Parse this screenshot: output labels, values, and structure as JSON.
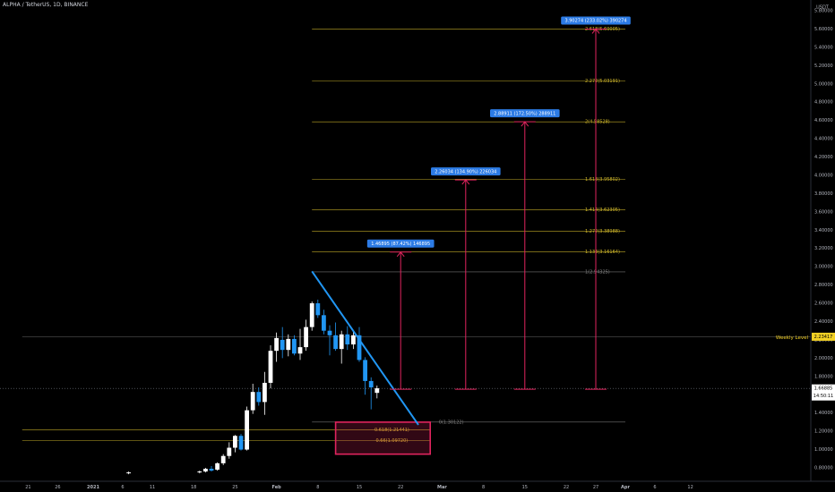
{
  "header": {
    "symbol_line": "ALPHA / TetherUS, 1D, BINANCE"
  },
  "chart_data": {
    "type": "candlestick",
    "quote_currency": "USDT",
    "y_axis": {
      "ylim": [
        0.7,
        5.95
      ],
      "ticks": [
        "5.80000",
        "5.60000",
        "5.40000",
        "5.20000",
        "5.00000",
        "4.80000",
        "4.60000",
        "4.40000",
        "4.20000",
        "4.00000",
        "3.80000",
        "3.60000",
        "3.40000",
        "3.20000",
        "3.00000",
        "2.80000",
        "2.60000",
        "2.40000",
        "2.20000",
        "2.00000",
        "1.80000",
        "1.60000",
        "1.40000",
        "1.20000",
        "1.00000",
        "0.80000"
      ]
    },
    "x_axis": {
      "tick_labels": [
        {
          "label": "21",
          "day": -11
        },
        {
          "label": "26",
          "day": -6
        },
        {
          "label": "2021",
          "day": 0
        },
        {
          "label": "6",
          "day": 5
        },
        {
          "label": "11",
          "day": 10
        },
        {
          "label": "18",
          "day": 17
        },
        {
          "label": "25",
          "day": 24
        },
        {
          "label": "Feb",
          "day": 31
        },
        {
          "label": "8",
          "day": 38
        },
        {
          "label": "15",
          "day": 45
        },
        {
          "label": "22",
          "day": 52
        },
        {
          "label": "Mar",
          "day": 59
        },
        {
          "label": "8",
          "day": 66
        },
        {
          "label": "15",
          "day": 73
        },
        {
          "label": "22",
          "day": 80
        },
        {
          "label": "27",
          "day": 85
        },
        {
          "label": "Apr",
          "day": 90
        },
        {
          "label": "6",
          "day": 95
        },
        {
          "label": "12",
          "day": 101
        }
      ]
    },
    "candles": [
      {
        "day": 6,
        "o": 0.74,
        "h": 0.76,
        "l": 0.73,
        "c": 0.75
      },
      {
        "day": 18,
        "o": 0.75,
        "h": 0.77,
        "l": 0.74,
        "c": 0.76
      },
      {
        "day": 19,
        "o": 0.76,
        "h": 0.8,
        "l": 0.75,
        "c": 0.79
      },
      {
        "day": 20,
        "o": 0.79,
        "h": 0.82,
        "l": 0.76,
        "c": 0.77
      },
      {
        "day": 21,
        "o": 0.78,
        "h": 0.86,
        "l": 0.77,
        "c": 0.85
      },
      {
        "day": 22,
        "o": 0.85,
        "h": 0.95,
        "l": 0.83,
        "c": 0.93
      },
      {
        "day": 23,
        "o": 0.93,
        "h": 1.08,
        "l": 0.9,
        "c": 1.02
      },
      {
        "day": 24,
        "o": 1.02,
        "h": 1.16,
        "l": 0.97,
        "c": 1.15
      },
      {
        "day": 25,
        "o": 1.15,
        "h": 1.17,
        "l": 0.99,
        "c": 1.0
      },
      {
        "day": 26,
        "o": 1.0,
        "h": 1.47,
        "l": 0.99,
        "c": 1.43
      },
      {
        "day": 27,
        "o": 1.43,
        "h": 1.72,
        "l": 1.39,
        "c": 1.63
      },
      {
        "day": 28,
        "o": 1.63,
        "h": 1.68,
        "l": 1.48,
        "c": 1.52
      },
      {
        "day": 29,
        "o": 1.52,
        "h": 1.85,
        "l": 1.38,
        "c": 1.73
      },
      {
        "day": 30,
        "o": 1.73,
        "h": 2.14,
        "l": 1.67,
        "c": 2.08
      },
      {
        "day": 31,
        "o": 2.08,
        "h": 2.28,
        "l": 1.96,
        "c": 2.22
      },
      {
        "day": 32,
        "o": 2.2,
        "h": 2.34,
        "l": 2.0,
        "c": 2.09
      },
      {
        "day": 33,
        "o": 2.09,
        "h": 2.26,
        "l": 2.02,
        "c": 2.21
      },
      {
        "day": 34,
        "o": 2.21,
        "h": 2.25,
        "l": 2.03,
        "c": 2.05
      },
      {
        "day": 35,
        "o": 2.05,
        "h": 2.32,
        "l": 1.98,
        "c": 2.12
      },
      {
        "day": 36,
        "o": 2.12,
        "h": 2.42,
        "l": 2.08,
        "c": 2.34
      },
      {
        "day": 37,
        "o": 2.34,
        "h": 2.62,
        "l": 2.3,
        "c": 2.6
      },
      {
        "day": 38,
        "o": 2.6,
        "h": 2.64,
        "l": 2.44,
        "c": 2.47
      },
      {
        "day": 39,
        "o": 2.47,
        "h": 2.53,
        "l": 2.26,
        "c": 2.3
      },
      {
        "day": 40,
        "o": 2.3,
        "h": 2.36,
        "l": 2.03,
        "c": 2.25
      },
      {
        "day": 41,
        "o": 2.25,
        "h": 2.39,
        "l": 2.08,
        "c": 2.1
      },
      {
        "day": 42,
        "o": 2.1,
        "h": 2.3,
        "l": 1.94,
        "c": 2.26
      },
      {
        "day": 43,
        "o": 2.26,
        "h": 2.35,
        "l": 2.09,
        "c": 2.15
      },
      {
        "day": 44,
        "o": 2.15,
        "h": 2.3,
        "l": 2.1,
        "c": 2.25
      },
      {
        "day": 45,
        "o": 2.25,
        "h": 2.34,
        "l": 1.96,
        "c": 1.98
      },
      {
        "day": 46,
        "o": 1.98,
        "h": 2.01,
        "l": 1.6,
        "c": 1.75
      },
      {
        "day": 47,
        "o": 1.75,
        "h": 1.79,
        "l": 1.44,
        "c": 1.68
      },
      {
        "day": 48,
        "o": 1.62,
        "h": 1.7,
        "l": 1.56,
        "c": 1.67
      }
    ],
    "trendline": {
      "from": {
        "day": 37,
        "price": 2.95
      },
      "to": {
        "day": 55,
        "price": 1.27
      },
      "color": "#2196f3"
    },
    "weekly_level": {
      "price": 2.23417,
      "label": "Weekly Level",
      "price_label": "2.23417",
      "color": "#f2d024"
    },
    "last_price": {
      "price": 1.66885,
      "label": "1.66885",
      "countdown": "14:50:11"
    },
    "fib_levels": [
      {
        "label": "2.618(5.60005)",
        "price": 5.60005,
        "color": "#d4bb2c"
      },
      {
        "label": "2.272(5.03191)",
        "price": 5.03191,
        "color": "#d4bb2c"
      },
      {
        "label": "2(4.58528)",
        "price": 4.58528,
        "color": "#d4bb2c"
      },
      {
        "label": "1.618(3.95802)",
        "price": 3.95802,
        "color": "#d4bb2c"
      },
      {
        "label": "1.414(3.62305)",
        "price": 3.62305,
        "color": "#d4bb2c"
      },
      {
        "label": "1.272(3.38988)",
        "price": 3.38988,
        "color": "#d4bb2c"
      },
      {
        "label": "1.133(3.16164)",
        "price": 3.16164,
        "color": "#d4bb2c"
      },
      {
        "label": "1(2.94325)",
        "price": 2.94325,
        "color": "#808080"
      },
      {
        "label": "0.618(1.21441)",
        "price": 1.21441,
        "color": "#d4bb2c"
      },
      {
        "label": "0.66(1.09720)",
        "price": 1.0972,
        "color": "#d4bb2c"
      },
      {
        "label": "0(1.30122)",
        "price": 1.30122,
        "color": "#808080"
      }
    ],
    "projections": [
      {
        "day": 52,
        "from": 1.66,
        "to": 3.16,
        "label": "1.46895 (87.42%) 146895"
      },
      {
        "day": 63,
        "from": 1.66,
        "to": 3.95,
        "label": "2.26034 (134.90%) 226034"
      },
      {
        "day": 73,
        "from": 1.66,
        "to": 4.585,
        "label": "2.88911 (172.50%) 288911"
      },
      {
        "day": 85,
        "from": 1.66,
        "to": 5.6,
        "label": "3.90274 (233.02%) 390274"
      }
    ],
    "buy_zone": {
      "from_day": 41,
      "to_day": 57,
      "top": 1.3,
      "bottom": 0.95,
      "color": "#e0245e"
    }
  }
}
